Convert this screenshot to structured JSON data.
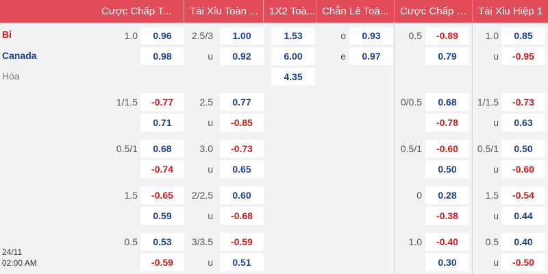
{
  "headers": [
    "Cược Chấp T...",
    "Tài Xỉu Toàn ...",
    "1X2 Toà...",
    "Chẵn Lẻ Toà...",
    "Cược Chấp H...",
    "Tài Xỉu Hiệp 1"
  ],
  "teams": {
    "home": "Bỉ",
    "away": "Canada",
    "draw": "Hòa"
  },
  "match_date": "24/11",
  "match_time": "02:00 AM",
  "labels": {
    "over": "u",
    "odd": "o",
    "even": "e"
  },
  "main": {
    "hdp_ft": {
      "line": "1.0",
      "home": "0.96",
      "away": "0.98"
    },
    "ou_ft": {
      "line": "2.5/3",
      "over": "1.00",
      "under": "0.92"
    },
    "x12": {
      "home": "1.53",
      "away": "6.00",
      "draw": "4.35"
    },
    "oe": {
      "odd": "0.93",
      "even": "0.97"
    },
    "hdp_h1": {
      "line": "0.5",
      "home": "-0.89",
      "away": "0.79"
    },
    "ou_h1": {
      "line": "1.0",
      "over": "0.85",
      "under": "-0.95"
    }
  },
  "extra": [
    {
      "hdp_ft": {
        "line": "1/1.5",
        "home": "-0.77",
        "away": "0.71"
      },
      "ou_ft": {
        "line": "2.5",
        "over": "0.77",
        "under": "-0.85"
      },
      "hdp_h1": {
        "line": "0/0.5",
        "home": "0.68",
        "away": "-0.78"
      },
      "ou_h1": {
        "line": "1/1.5",
        "over": "-0.73",
        "under": "0.63"
      }
    },
    {
      "hdp_ft": {
        "line": "0.5/1",
        "home": "0.68",
        "away": "-0.74"
      },
      "ou_ft": {
        "line": "3.0",
        "over": "-0.73",
        "under": "0.65"
      },
      "hdp_h1": {
        "line": "0.5/1",
        "home": "-0.60",
        "away": "0.50"
      },
      "ou_h1": {
        "line": "0.5/1",
        "over": "0.50",
        "under": "-0.60"
      }
    },
    {
      "hdp_ft": {
        "line": "1.5",
        "home": "-0.65",
        "away": "0.59"
      },
      "ou_ft": {
        "line": "2/2.5",
        "over": "0.60",
        "under": "-0.68"
      },
      "hdp_h1": {
        "line": "0",
        "home": "0.28",
        "away": "-0.38"
      },
      "ou_h1": {
        "line": "1.5",
        "over": "-0.54",
        "under": "0.44"
      }
    },
    {
      "hdp_ft": {
        "line": "0.5",
        "home": "0.53",
        "away": "-0.59"
      },
      "ou_ft": {
        "line": "3/3.5",
        "over": "-0.59",
        "under": "0.51"
      },
      "hdp_h1": {
        "line": "1.0",
        "home": "-0.40",
        "away": "0.30"
      },
      "ou_h1": {
        "line": "0.5",
        "over": "0.40",
        "under": "-0.50"
      }
    }
  ]
}
